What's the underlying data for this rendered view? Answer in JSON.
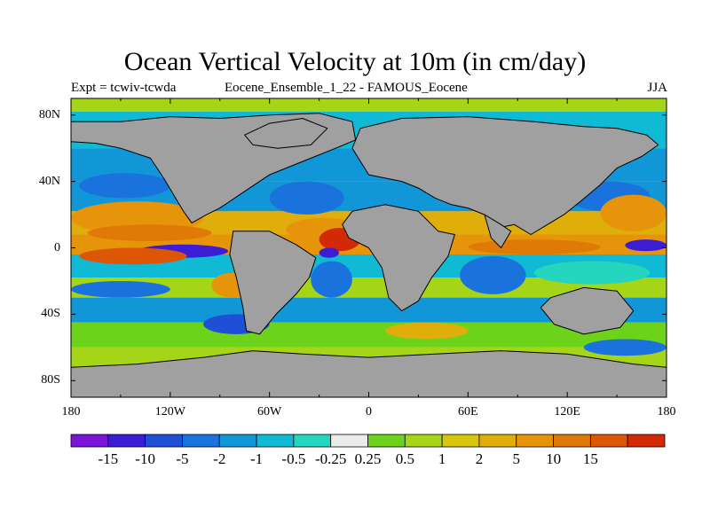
{
  "title": "Ocean Vertical Velocity at 10m (in cm/day)",
  "subtitle_left": "Expt = tcwiv-tcwda",
  "subtitle_center": "Eocene_Ensemble_1_22 - FAMOUS_Eocene",
  "subtitle_right": "JJA",
  "lat_labels": [
    "80N",
    "40N",
    "0",
    "40S",
    "80S"
  ],
  "lon_labels": [
    "180",
    "120W",
    "60W",
    "0",
    "60E",
    "120E",
    "180"
  ],
  "colorbar": {
    "labels": [
      "-15",
      "-10",
      "-5",
      "-2",
      "-1",
      "-0.5",
      "-0.25",
      "0.25",
      "0.5",
      "1",
      "2",
      "5",
      "10",
      "15"
    ],
    "colors": [
      "#7a14d6",
      "#3c1cd4",
      "#1f4fd6",
      "#1a73dc",
      "#1197d8",
      "#10b9d4",
      "#25d6be",
      "#ececec",
      "#6cd21a",
      "#a6d416",
      "#d6c60e",
      "#e0ae0a",
      "#e6940a",
      "#e07a06",
      "#dc5606",
      "#d22a06"
    ]
  },
  "land_color": "#a0a0a0"
}
